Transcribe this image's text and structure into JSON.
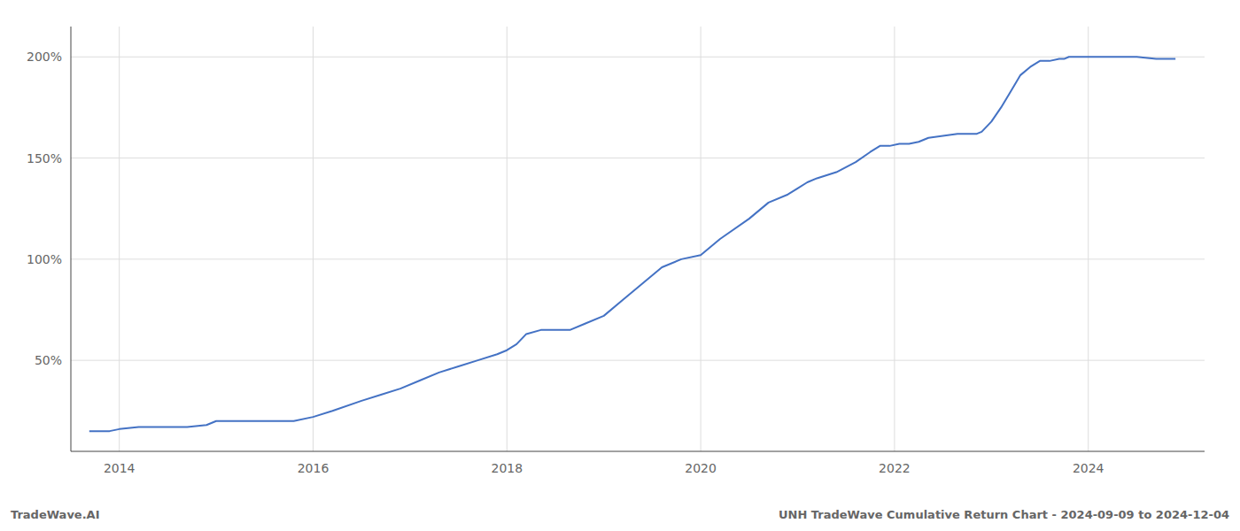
{
  "chart_data": {
    "type": "line",
    "x": [
      2013.69,
      2013.9,
      2014.0,
      2014.2,
      2014.5,
      2014.7,
      2014.9,
      2015.0,
      2015.1,
      2015.2,
      2015.4,
      2015.6,
      2015.8,
      2016.0,
      2016.2,
      2016.5,
      2016.7,
      2016.9,
      2017.1,
      2017.3,
      2017.5,
      2017.7,
      2017.9,
      2018.0,
      2018.1,
      2018.2,
      2018.35,
      2018.5,
      2018.65,
      2018.8,
      2019.0,
      2019.2,
      2019.4,
      2019.6,
      2019.8,
      2020.0,
      2020.2,
      2020.5,
      2020.7,
      2020.9,
      2021.0,
      2021.1,
      2021.2,
      2021.4,
      2021.6,
      2021.75,
      2021.85,
      2021.95,
      2022.05,
      2022.15,
      2022.25,
      2022.35,
      2022.5,
      2022.65,
      2022.75,
      2022.85,
      2022.9,
      2023.0,
      2023.1,
      2023.2,
      2023.3,
      2023.4,
      2023.5,
      2023.6,
      2023.7,
      2023.75,
      2023.8,
      2023.85,
      2023.9,
      2023.95,
      2024.0,
      2024.1,
      2024.2,
      2024.3,
      2024.5,
      2024.7,
      2024.9
    ],
    "values": [
      15,
      15,
      16,
      17,
      17,
      17,
      18,
      20,
      20,
      20,
      20,
      20,
      20,
      22,
      25,
      30,
      33,
      36,
      40,
      44,
      47,
      50,
      53,
      55,
      58,
      63,
      65,
      65,
      65,
      68,
      72,
      80,
      88,
      96,
      100,
      102,
      110,
      120,
      128,
      132,
      135,
      138,
      140,
      143,
      148,
      153,
      156,
      156,
      157,
      157,
      158,
      160,
      161,
      162,
      162,
      162,
      163,
      168,
      175,
      183,
      191,
      195,
      198,
      198,
      199,
      199,
      200,
      200,
      200,
      200,
      200,
      200,
      200,
      200,
      200,
      199,
      199
    ],
    "color": "#4472c4",
    "xlim": [
      2013.5,
      2025.2
    ],
    "ylim": [
      5,
      215
    ],
    "xticks": [
      2014,
      2016,
      2018,
      2020,
      2022,
      2024
    ],
    "yticks": [
      {
        "value": 50,
        "label": "50%"
      },
      {
        "value": 100,
        "label": "100%"
      },
      {
        "value": 150,
        "label": "150%"
      },
      {
        "value": 200,
        "label": "200%"
      }
    ],
    "grid": true,
    "annotations": [
      "TradeWave.AI",
      "UNH TradeWave Cumulative Return Chart - 2024-09-09 to 2024-12-04"
    ]
  }
}
